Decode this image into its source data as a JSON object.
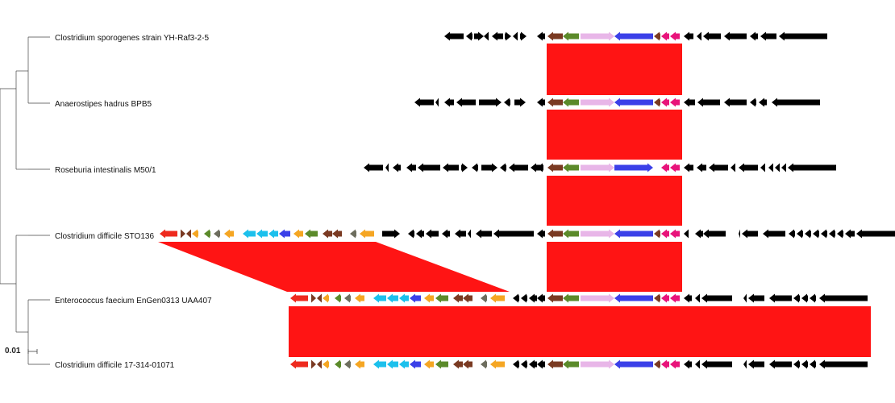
{
  "figure": {
    "scale_label": "0.01",
    "taxa": [
      "Clostridium sporogenes strain YH-Raf3-2-5",
      "Anaerostipes hadrus BPB5",
      "Roseburia intestinalis M50/1",
      "Clostridium difficile STO136",
      "Enterococcus faecium EnGen0313 UAA407",
      "Clostridium difficile 17-314-01071"
    ]
  },
  "colors": {
    "black": "#000000",
    "red": "#ee2a1e",
    "brown": "#7a3a22",
    "olive": "#5b8a2a",
    "orange": "#f5a623",
    "cyan": "#1cc0ec",
    "blue": "#3b40e8",
    "pink": "#e8b6e8",
    "magenta": "#e8137a",
    "gray": "#6d6d5e",
    "block": "#ff1414"
  }
}
